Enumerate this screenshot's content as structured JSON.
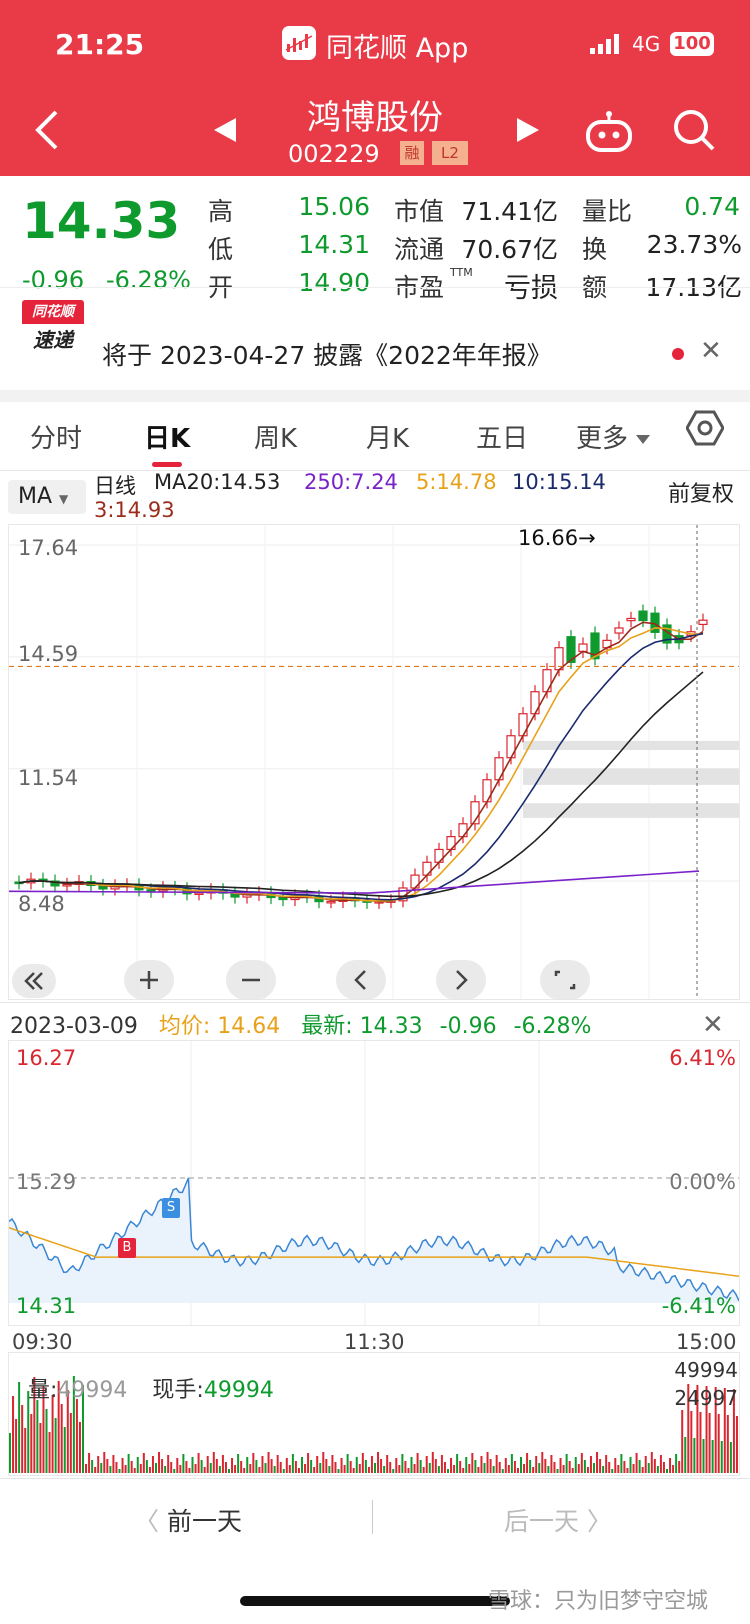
{
  "status_bar": {
    "time": "21:25",
    "app_name": "同花顺 App",
    "network": "4G",
    "battery": "100"
  },
  "header": {
    "stock_name": "鸿博股份",
    "stock_code": "002229",
    "tag_margin": "融",
    "tag_level": "L2"
  },
  "quote": {
    "price": "14.33",
    "change": "-0.96",
    "change_pct": "-6.28%",
    "high_label": "高",
    "high": "15.06",
    "low_label": "低",
    "low": "14.31",
    "open_label": "开",
    "open": "14.90",
    "mktcap_label": "市值",
    "mktcap": "71.41亿",
    "float_label": "流通",
    "float_cap": "70.67亿",
    "pe_label": "市盈",
    "pe_sup": "TTM",
    "pe": "亏损",
    "volratio_label": "量比",
    "volratio": "0.74",
    "turnover_label": "换",
    "turnover": "23.73%",
    "amount_label": "额",
    "amount": "17.13亿"
  },
  "notice": {
    "badge_top": "同花顺",
    "badge_bottom": "速递",
    "text": "将于 2023-04-27 披露《2022年年报》"
  },
  "tabs": [
    "分时",
    "日K",
    "周K",
    "月K",
    "五日",
    "更多"
  ],
  "selected_tab": "日K",
  "ma_bar": {
    "button": "MA",
    "line_type": "日线",
    "ma20": "MA20:14.53",
    "ma250": "250:7.24",
    "ma5": "5:14.78",
    "ma10": "10:15.14",
    "ma3": "3:14.93",
    "adjust": "前复权"
  },
  "kline": {
    "y_labels": [
      "17.64",
      "14.59",
      "11.54",
      "8.48"
    ],
    "max_marker": "16.66→",
    "current_price_line": 14.33,
    "colors": {
      "up": "#d9262f",
      "down": "#0f9a2e",
      "ma5": "#e8a21a",
      "ma10": "#1a2a6c",
      "ma20": "#222222",
      "ma3": "#9b2c1c",
      "ma250": "#7a22c9"
    }
  },
  "intraday": {
    "date": "2023-03-09",
    "avg_label": "均价:",
    "avg": "14.64",
    "latest_label": "最新:",
    "latest": "14.33",
    "change": "-0.96",
    "change_pct": "-6.28%",
    "y_top": "16.27",
    "y_mid": "15.29",
    "y_bottom": "14.31",
    "pct_top": "6.41%",
    "pct_mid": "0.00%",
    "pct_bottom": "-6.41%",
    "times": [
      "09:30",
      "11:30",
      "15:00"
    ],
    "marker_buy": "B",
    "marker_sell": "S"
  },
  "volume": {
    "label": "量:",
    "value": "49994",
    "now_label": "现手:",
    "now": "49994",
    "y_top": "49994",
    "y_mid": "24997"
  },
  "bottom_nav": {
    "prev": "前一天",
    "next": "后一天"
  },
  "watermark": "雪球：只为旧梦守空城"
}
